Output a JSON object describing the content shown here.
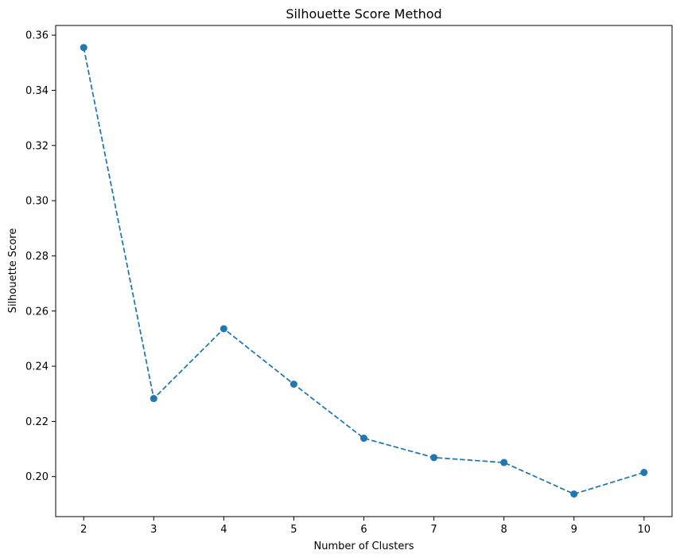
{
  "chart_data": {
    "type": "line",
    "title": "Silhouette Score Method",
    "xlabel": "Number of Clusters",
    "ylabel": "Silhouette Score",
    "x": [
      2,
      3,
      4,
      5,
      6,
      7,
      8,
      9,
      10
    ],
    "xticks": [
      "2",
      "3",
      "4",
      "5",
      "6",
      "7",
      "8",
      "9",
      "10"
    ],
    "yticks": [
      "0.20",
      "0.22",
      "0.24",
      "0.26",
      "0.28",
      "0.30",
      "0.32",
      "0.34",
      "0.36"
    ],
    "xlim": [
      1.6,
      10.4
    ],
    "ylim": [
      0.1855,
      0.3635
    ],
    "series": [
      {
        "values": [
          0.3555,
          0.2283,
          0.2536,
          0.2335,
          0.2139,
          0.2069,
          0.2051,
          0.1937,
          0.2015
        ],
        "color": "#1f77b4",
        "line_style": "dashed",
        "marker": "circle"
      }
    ],
    "grid": false,
    "legend": "none"
  }
}
